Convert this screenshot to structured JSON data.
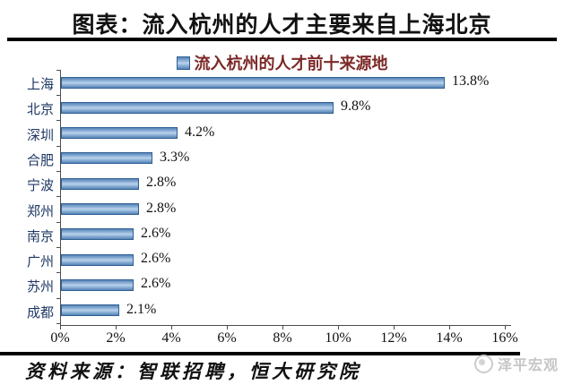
{
  "page": {
    "title": "图表：流入杭州的人才主要来自上海北京",
    "source": "资料来源：智联招聘，恒大研究院",
    "watermark": "泽平宏观"
  },
  "chart_data": {
    "type": "bar",
    "orientation": "horizontal",
    "legend": "流入杭州的人才前十来源地",
    "legend_position": "top-center",
    "categories": [
      "上海",
      "北京",
      "深圳",
      "合肥",
      "宁波",
      "郑州",
      "南京",
      "广州",
      "苏州",
      "成都"
    ],
    "values": [
      13.8,
      9.8,
      4.2,
      3.3,
      2.8,
      2.8,
      2.6,
      2.6,
      2.6,
      2.1
    ],
    "data_labels": [
      "13.8%",
      "9.8%",
      "4.2%",
      "3.3%",
      "2.8%",
      "2.8%",
      "2.6%",
      "2.6%",
      "2.6%",
      "2.1%"
    ],
    "x_tick_labels": [
      "0%",
      "2%",
      "4%",
      "6%",
      "8%",
      "10%",
      "12%",
      "14%",
      "16%"
    ],
    "xlim": [
      0,
      16
    ],
    "x_tick_step": 2,
    "grid": false,
    "bar_color": "#4f81bd",
    "category_label_color": "#1f3864",
    "legend_text_color": "#7b2927"
  }
}
